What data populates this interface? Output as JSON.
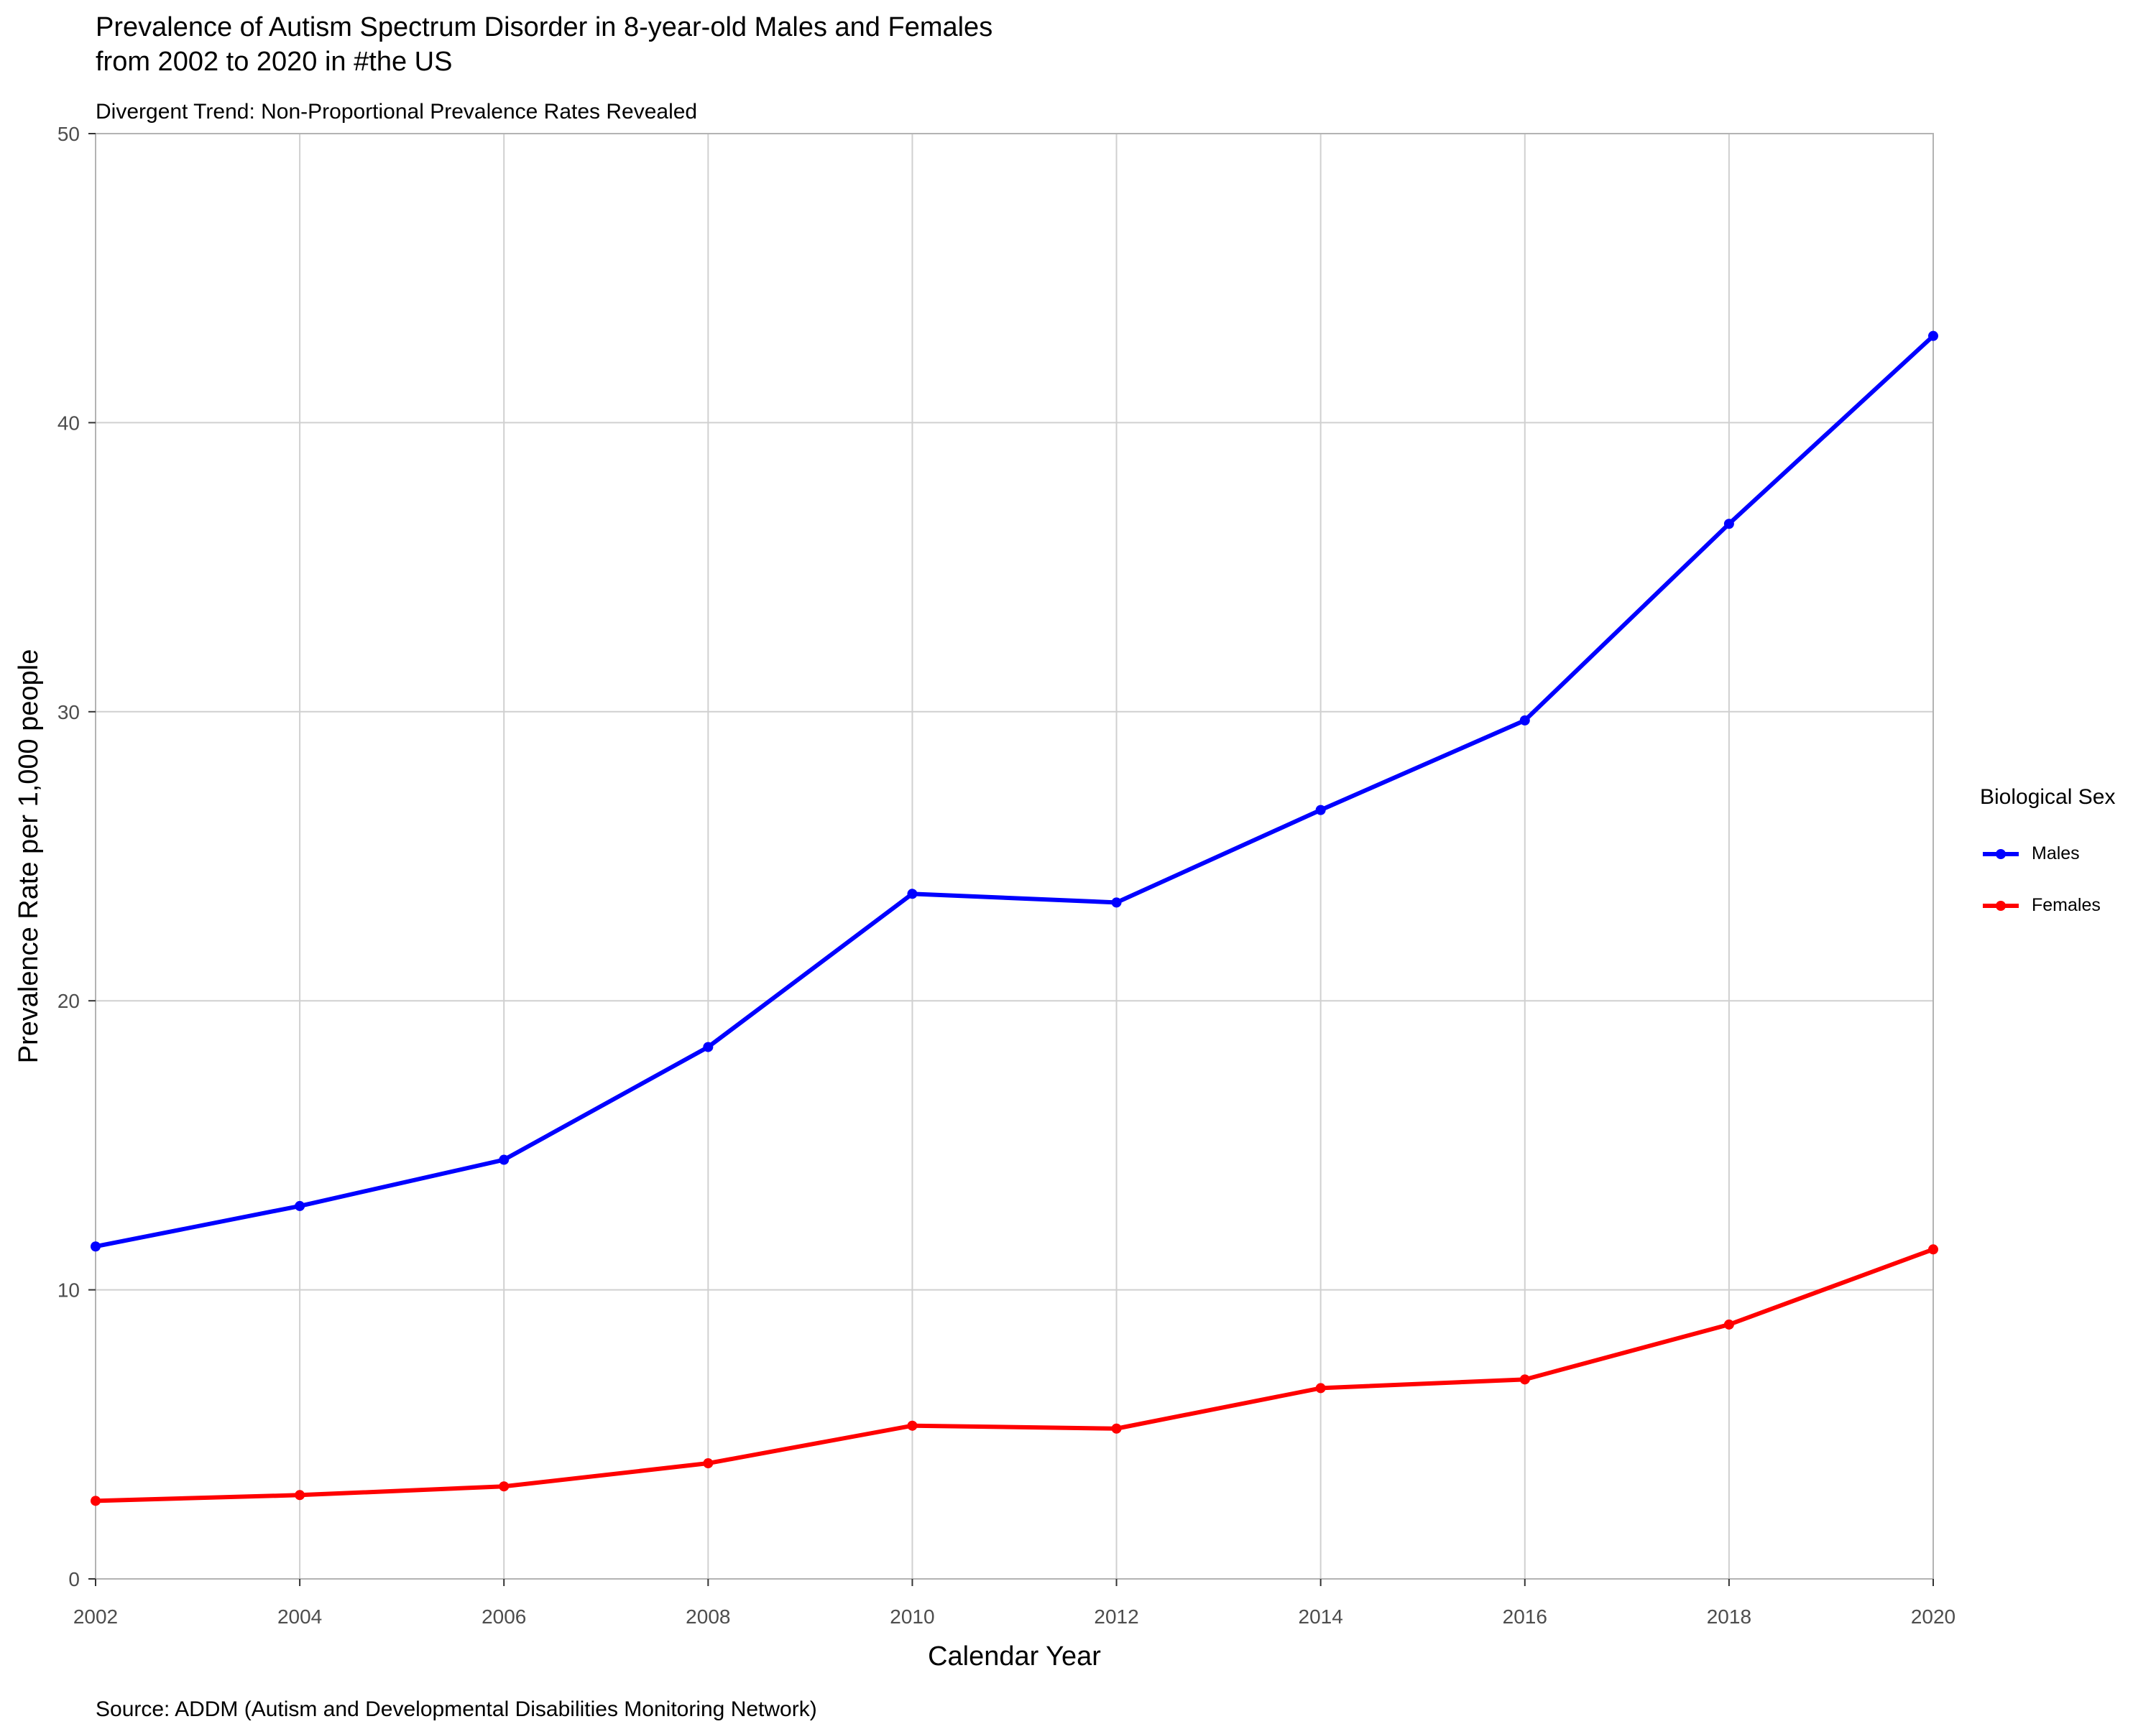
{
  "chart_data": {
    "type": "line",
    "title_lines": [
      "Prevalence of Autism Spectrum Disorder in 8-year-old Males and Females",
      "from 2002 to 2020 in #the US"
    ],
    "subtitle": "Divergent Trend: Non-Proportional Prevalence Rates Revealed",
    "caption": "Source: ADDM (Autism and Developmental Disabilities Monitoring Network)",
    "xlabel": "Calendar Year",
    "ylabel": "Prevalence Rate per 1,000 people",
    "x": [
      2002,
      2004,
      2006,
      2008,
      2010,
      2012,
      2014,
      2016,
      2018,
      2020
    ],
    "xlim": [
      2002,
      2020
    ],
    "ylim": [
      0,
      50
    ],
    "x_ticks": [
      2002,
      2004,
      2006,
      2008,
      2010,
      2012,
      2014,
      2016,
      2018,
      2020
    ],
    "y_ticks": [
      0,
      10,
      20,
      30,
      40,
      50
    ],
    "grid": true,
    "legend_title": "Biological Sex",
    "legend_position": "right",
    "series": [
      {
        "name": "Males",
        "color": "#0000ff",
        "values": [
          11.5,
          12.9,
          14.5,
          18.4,
          23.7,
          23.4,
          26.6,
          29.7,
          36.5,
          43.0
        ]
      },
      {
        "name": "Females",
        "color": "#ff0000",
        "values": [
          2.7,
          2.9,
          3.2,
          4.0,
          5.3,
          5.2,
          6.6,
          6.9,
          8.8,
          11.4
        ]
      }
    ]
  }
}
